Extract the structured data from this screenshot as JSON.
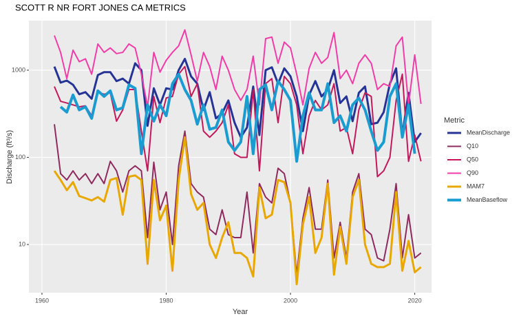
{
  "chart_data": {
    "type": "line",
    "title": "SCOTT R NR FORT JONES CA  METRICS",
    "x_label": "Year",
    "y_label": "Discharge (ft³/s)",
    "legend_title": "Metric",
    "legend": "right",
    "log_y": true,
    "grid": true,
    "x": [
      1962,
      1963,
      1964,
      1965,
      1966,
      1967,
      1968,
      1969,
      1970,
      1971,
      1972,
      1973,
      1974,
      1975,
      1976,
      1977,
      1978,
      1979,
      1980,
      1981,
      1982,
      1983,
      1984,
      1985,
      1986,
      1987,
      1988,
      1989,
      1990,
      1991,
      1992,
      1993,
      1994,
      1995,
      1996,
      1997,
      1998,
      1999,
      2000,
      2001,
      2002,
      2003,
      2004,
      2005,
      2006,
      2007,
      2008,
      2009,
      2010,
      2011,
      2012,
      2013,
      2014,
      2015,
      2016,
      2017,
      2018,
      2019,
      2020,
      2021
    ],
    "xlim": [
      1957.9,
      2022.7
    ],
    "xticks": [
      1960,
      1980,
      2000,
      2020
    ],
    "ylim": [
      2.8,
      3700
    ],
    "yticks": [
      10,
      100,
      1000
    ],
    "series": [
      {
        "name": "MeanDischarge",
        "color": "#253494",
        "linewidth": 3,
        "values": [
          1100,
          720,
          760,
          680,
          530,
          560,
          470,
          880,
          950,
          950,
          750,
          800,
          700,
          1200,
          1000,
          230,
          620,
          400,
          620,
          600,
          1000,
          1350,
          850,
          700,
          350,
          560,
          280,
          320,
          450,
          250,
          170,
          220,
          650,
          180,
          1000,
          1080,
          700,
          1050,
          850,
          500,
          200,
          520,
          750,
          500,
          600,
          1000,
          420,
          500,
          260,
          550,
          650,
          240,
          250,
          330,
          700,
          1050,
          180,
          550,
          150,
          190
        ]
      },
      {
        "name": "Q10",
        "color": "#8e2a5e",
        "linewidth": 2,
        "values": [
          240,
          65,
          55,
          70,
          55,
          65,
          50,
          65,
          50,
          90,
          70,
          40,
          70,
          80,
          70,
          12,
          88,
          25,
          40,
          10,
          80,
          200,
          50,
          40,
          35,
          15,
          13,
          25,
          13,
          12,
          12,
          40,
          8,
          50,
          35,
          30,
          75,
          65,
          30,
          4.5,
          20,
          45,
          15,
          15,
          55,
          7,
          18,
          7,
          40,
          65,
          15,
          13,
          7,
          6.5,
          15,
          50,
          7,
          22,
          7,
          8
        ]
      },
      {
        "name": "Q50",
        "color": "#c2185b",
        "linewidth": 2,
        "values": [
          650,
          440,
          420,
          400,
          380,
          390,
          300,
          560,
          530,
          550,
          260,
          350,
          600,
          600,
          200,
          70,
          500,
          250,
          480,
          500,
          900,
          1100,
          500,
          700,
          200,
          170,
          200,
          250,
          400,
          110,
          100,
          100,
          600,
          70,
          700,
          800,
          250,
          850,
          700,
          400,
          110,
          300,
          450,
          350,
          400,
          700,
          200,
          220,
          110,
          350,
          550,
          500,
          60,
          70,
          100,
          450,
          900,
          90,
          180,
          90
        ]
      },
      {
        "name": "Q90",
        "color": "#f03ca8",
        "linewidth": 2,
        "values": [
          2500,
          1600,
          800,
          1700,
          1250,
          1350,
          900,
          2000,
          1600,
          1800,
          1550,
          1600,
          2000,
          1800,
          900,
          380,
          1600,
          950,
          1300,
          1600,
          1900,
          2900,
          1500,
          750,
          1600,
          1100,
          600,
          1450,
          1000,
          600,
          450,
          600,
          1450,
          400,
          2300,
          2400,
          1200,
          2100,
          1800,
          900,
          400,
          1050,
          1600,
          1200,
          1400,
          2700,
          800,
          1000,
          700,
          1200,
          1500,
          1200,
          600,
          700,
          650,
          1900,
          2400,
          400,
          1500,
          410
        ]
      },
      {
        "name": "MAM7",
        "color": "#e8a800",
        "linewidth": 3,
        "values": [
          70,
          55,
          42,
          52,
          36,
          34,
          32,
          35,
          31,
          55,
          58,
          22,
          60,
          62,
          55,
          6,
          55,
          19,
          28,
          5,
          55,
          170,
          38,
          25,
          30,
          10,
          7,
          12,
          18,
          8,
          8,
          7,
          4.3,
          45,
          20,
          22,
          55,
          52,
          30,
          3.5,
          17,
          35,
          8,
          12,
          50,
          4.5,
          16,
          6,
          35,
          55,
          10,
          6,
          5.5,
          5.5,
          6,
          40,
          5,
          11,
          4.8,
          5.5
        ]
      },
      {
        "name": "MeanBaseflow",
        "color": "#1a9cd0",
        "linewidth": 4,
        "values": [
          null,
          380,
          330,
          520,
          350,
          380,
          280,
          580,
          500,
          580,
          350,
          370,
          680,
          620,
          110,
          400,
          260,
          400,
          300,
          700,
          900,
          600,
          450,
          240,
          400,
          210,
          220,
          350,
          150,
          120,
          150,
          500,
          110,
          600,
          680,
          350,
          750,
          600,
          450,
          90,
          300,
          550,
          350,
          350,
          700,
          250,
          300,
          200,
          400,
          480,
          350,
          200,
          120,
          150,
          500,
          700,
          170,
          400,
          110,
          null
        ]
      }
    ]
  }
}
